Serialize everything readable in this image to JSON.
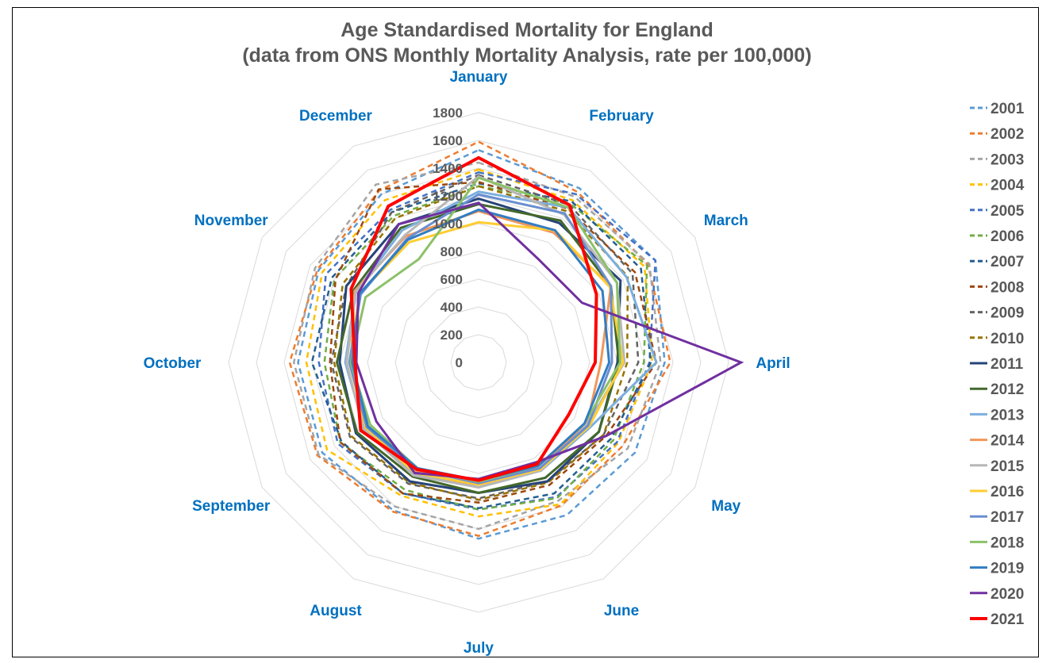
{
  "chart_data": {
    "type": "radar",
    "title": "Age Standardised Mortality for England",
    "subtitle": "(data from ONS Monthly Mortality Analysis, rate per 100,000)",
    "categories": [
      "January",
      "February",
      "March",
      "April",
      "May",
      "June",
      "July",
      "August",
      "September",
      "October",
      "November",
      "December"
    ],
    "rlim": [
      0,
      1800
    ],
    "ticks": [
      "0",
      "200",
      "400",
      "600",
      "800",
      "1000",
      "1200",
      "1400",
      "1600",
      "1800"
    ],
    "tick_values": [
      0,
      200,
      400,
      600,
      800,
      1000,
      1200,
      1400,
      1600,
      1800
    ],
    "grid": true,
    "legend_position": "right",
    "series": [
      {
        "name": "2001",
        "color": "#5b9bd5",
        "dashed": true,
        "values": [
          1530,
          1450,
          1470,
          1340,
          1300,
          1270,
          1270,
          1230,
          1300,
          1300,
          1330,
          1400
        ]
      },
      {
        "name": "2002",
        "color": "#ed7d31",
        "dashed": true,
        "values": [
          1590,
          1420,
          1410,
          1380,
          1200,
          1190,
          1250,
          1240,
          1340,
          1360,
          1340,
          1430
        ]
      },
      {
        "name": "2003",
        "color": "#a5a5a5",
        "dashed": true,
        "values": [
          1440,
          1380,
          1420,
          1310,
          1240,
          1150,
          1200,
          1200,
          1330,
          1330,
          1360,
          1480
        ]
      },
      {
        "name": "2004",
        "color": "#ffc000",
        "dashed": true,
        "values": [
          1390,
          1350,
          1380,
          1250,
          1160,
          1180,
          1110,
          1110,
          1260,
          1240,
          1300,
          1350
        ]
      },
      {
        "name": "2005",
        "color": "#4472c4",
        "dashed": true,
        "values": [
          1370,
          1400,
          1470,
          1230,
          1150,
          1120,
          1060,
          1090,
          1170,
          1150,
          1270,
          1270
        ]
      },
      {
        "name": "2006",
        "color": "#70ad47",
        "dashed": true,
        "values": [
          1270,
          1320,
          1400,
          1190,
          1120,
          1130,
          1060,
          1060,
          1150,
          1110,
          1200,
          1220
        ]
      },
      {
        "name": "2007",
        "color": "#255e91",
        "dashed": true,
        "values": [
          1290,
          1340,
          1350,
          1240,
          1100,
          1090,
          1050,
          1090,
          1140,
          1200,
          1220,
          1250
        ]
      },
      {
        "name": "2008",
        "color": "#9e480e",
        "dashed": true,
        "values": [
          1300,
          1280,
          1300,
          1280,
          1060,
          1020,
          1010,
          1090,
          1150,
          1070,
          1190,
          1440
        ]
      },
      {
        "name": "2009",
        "color": "#636363",
        "dashed": true,
        "values": [
          1350,
          1310,
          1280,
          1150,
          1040,
          990,
          980,
          1010,
          1070,
          1060,
          1100,
          1250
        ]
      },
      {
        "name": "2010",
        "color": "#997300",
        "dashed": true,
        "values": [
          1270,
          1260,
          1240,
          1070,
          1040,
          1000,
          990,
          1000,
          1060,
          1040,
          1130,
          1200
        ]
      },
      {
        "name": "2011",
        "color": "#264478",
        "dashed": false,
        "values": [
          1180,
          1160,
          1180,
          1000,
          1000,
          990,
          940,
          990,
          1020,
          1000,
          1100,
          1150
        ]
      },
      {
        "name": "2012",
        "color": "#43682b",
        "dashed": false,
        "values": [
          1140,
          1180,
          1100,
          1010,
          1000,
          960,
          940,
          950,
          1010,
          1020,
          1040,
          1120
        ]
      },
      {
        "name": "2013",
        "color": "#7cafdd",
        "dashed": false,
        "values": [
          1230,
          1290,
          1230,
          1280,
          930,
          900,
          900,
          930,
          950,
          960,
          1020,
          1100
        ]
      },
      {
        "name": "2014",
        "color": "#f1975a",
        "dashed": false,
        "values": [
          1090,
          1080,
          1100,
          880,
          900,
          860,
          900,
          900,
          940,
          920,
          1030,
          1050
        ]
      },
      {
        "name": "2015",
        "color": "#b7b7b7",
        "dashed": false,
        "values": [
          1340,
          1230,
          1150,
          1050,
          900,
          900,
          900,
          940,
          960,
          950,
          1020,
          1060
        ]
      },
      {
        "name": "2016",
        "color": "#ffcd33",
        "dashed": false,
        "values": [
          1010,
          1100,
          1090,
          1040,
          920,
          890,
          880,
          920,
          940,
          930,
          990,
          1000
        ]
      },
      {
        "name": "2017",
        "color": "#698ed0",
        "dashed": false,
        "values": [
          1210,
          1240,
          1100,
          960,
          910,
          880,
          870,
          890,
          930,
          930,
          980,
          1030
        ]
      },
      {
        "name": "2018",
        "color": "#8cc168",
        "dashed": false,
        "values": [
          1330,
          1290,
          1150,
          1020,
          880,
          860,
          860,
          880,
          900,
          920,
          940,
          860
        ]
      },
      {
        "name": "2019",
        "color": "#327dc2",
        "dashed": false,
        "values": [
          1100,
          1100,
          1030,
          940,
          880,
          860,
          850,
          880,
          920,
          910,
          990,
          1020
        ]
      },
      {
        "name": "2020",
        "color": "#7030a0",
        "dashed": false,
        "values": [
          1150,
          860,
          860,
          1890,
          1060,
          830,
          840,
          920,
          850,
          880,
          1000,
          1150
        ]
      },
      {
        "name": "2021",
        "color": "#ff0000",
        "dashed": false,
        "values": [
          1475,
          1310,
          980,
          840,
          750,
          845,
          850,
          890,
          980,
          890,
          1060,
          1300
        ]
      }
    ]
  }
}
